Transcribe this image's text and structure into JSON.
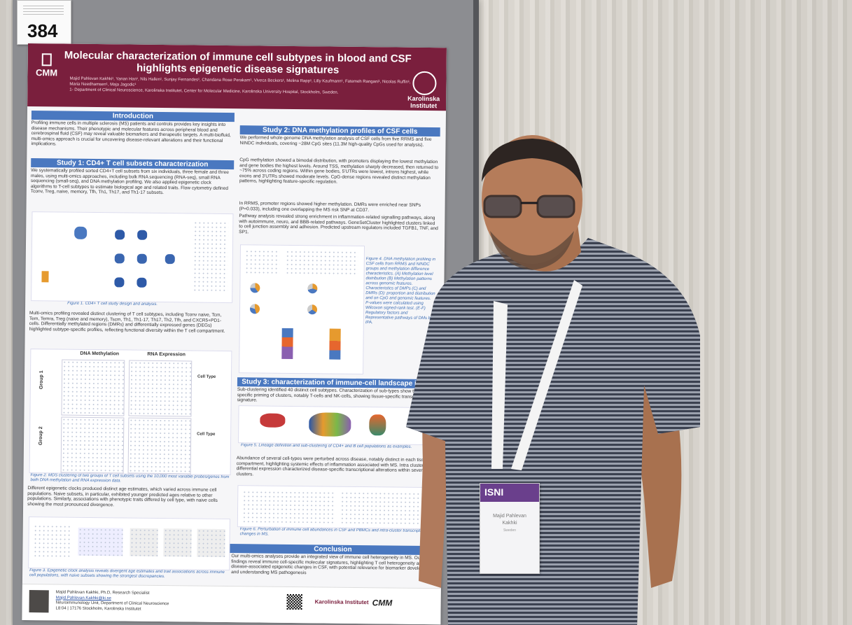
{
  "board": {
    "number": "384"
  },
  "poster": {
    "title": "Molecular characterization of immune cell subtypes in blood and CSF highlights epigenetic disease signatures",
    "authors": "Majid Pahlevan Kakhki¹, Yanan Han¹, Nils Hallen¹, Sunjay Fernandes¹, Chandana Rose Perakam¹, Viveca Beckers¹, Melina Rapp¹, Lilly Kaufmann¹, Fatemeh Rangani¹, Nicolas Ruffin¹, Maria Needhamsen¹, Maja Jagodic¹",
    "affiliation": "1- Department of Clinical Neuroscience, Karolinska Institutet, Center for Molecular Medicine, Karolinska University Hospital, Stockholm, Sweden.",
    "logo_left": "CMM",
    "logo_right": "Karolinska Institutet",
    "sections": {
      "intro": {
        "heading": "Introduction",
        "body": "Profiling immune cells in multiple sclerosis (MS) patients and controls provides key insights into disease mechanisms. Their phenotypic and molecular features across peripheral blood and cerebrospinal fluid (CSF) may reveal valuable biomarkers and therapeutic targets. A multi-biofluid, multi-omics approach is crucial for uncovering disease-relevant alterations and their functional implications."
      },
      "study1": {
        "heading": "Study 1: CD4+ T cell subsets characterization",
        "body": "We systematically profiled sorted CD4+T cell subsets from six individuals, three female and three males, using multi-omics approaches, including bulk RNA sequencing (RNA-seq), small RNA sequencing (small-seq), and DNA methylation profiling. We also applied epigenetic clock algorithms to T-cell subtypes to estimate biological age and related traits. Flow cytometry defined Tconv, Treg, naive, memory, Tfh, Th1, Th17, and Th1-17 subsets.",
        "fig1_caption": "Figure 1. CD4+ T cell study design and analysis.",
        "body2": "Multi-omics profiling revealed distinct clustering of T cell subtypes, including Tconv naive, Tcm, Tem, Temra, Treg (naive and memory), Tscm, Th1, Th1-17, Th17, Th2, Tfh, and CXCR5+PD1- cells. Differentially methylated regions (DMRs) and differentially expressed genes (DEGs) highlighted subtype-specific profiles, reflecting functional diversity within the T cell compartment.",
        "fig2_col1": "DNA Methylation",
        "fig2_col2": "RNA Expression",
        "fig2_row1": "Group 1",
        "fig2_row2": "Group 2",
        "fig2_legend1": "Cell Type",
        "fig2_legend2": "Cell Type",
        "fig2_caption": "Figure 2. MDS clustering of two groups of T cell subsets using the 10,000 most variable probes/genes from both DNA methylation and RNA expression data.",
        "body3": "Different epigenetic clocks produced distinct age estimates, which varied across immune cell populations. Naive subsets, in particular, exhibited younger predicted ages relative to other populations. Similarly, associations with phenotypic traits differed by cell type, with naive cells showing the most pronounced divergence.",
        "fig3_caption": "Figure 3. Epigenetic clock analysis reveals divergent age estimates and trait associations across immune cell populations, with naive subsets showing the strongest discrepancies."
      },
      "study2": {
        "heading": "Study 2: DNA methylation profiles of CSF cells",
        "body": "We performed whole-genome DNA methylation analysis of CSF cells from five RRMS and five NINDC individuals, covering ~28M CpG sites (11.3M high-quality CpGs used for analysis).",
        "body2": "CpG methylation showed a bimodal distribution, with promoters displaying the lowest methylation and gene bodies the highest levels. Around TSS, methylation sharply decreased, then returned to ~75% across coding regions. Within gene bodies, 5'UTRs were lowest, introns highest, while exons and 3'UTRs showed moderate levels. CpG-dense regions revealed distinct methylation patterns, highlighting feature-specific regulation.",
        "body3": "In RRMS, promoter regions showed higher methylation. DMRs were enriched near SNPs (P=0.033), including one overlapping the MS risk SNP at CD37.",
        "body4": "Pathway analysis revealed strong enrichment in inflammation-related signalling pathways, along with autoimmune, neuro, and BBB-related pathways. GeneSetCluster highlighted clusters linked to cell junction assembly and adhesion. Predicted upstream regulators included TGFB1, TNF, and SP1.",
        "fig4_caption": "Figure 4. DNA methylation profiling in CSF cells from RRMS and NINDC groups and methylation difference characteristics. (A) Methylation level distribution (B) Methylation patterns across genomic features. Characteristics of DMPs (C) and DMRs (D): proportion and distribution and on CpG and genomic features. P-values were calculated using Wilcoxon signed-rank test. (E-F) Regulatory factors and Representative pathways of DMs by IPA."
      },
      "study3": {
        "heading": "Study 3: characterization of immune-cell landscape in MS",
        "body": "Sub-clustering identified 40 distinct cell subtypes. Characterization of sub-types show tissue specific priming of clusters, notably T-cells and NK-cells, showing tissue-specific transcriptional signature.",
        "fig5_caption": "Figure 5. Lineage definition and sub-clustering of CD4+ and B cell populations as examples.",
        "body2": "Abundance of several cell-types were perturbed across disease, notably distinct in each tissue compartment, highlighting systemic effects of inflammation associated with MS. Intra cluster differential expression characterized disease-specific transcriptional alterations within several clusters.",
        "fig6_caption": "Figure 6. Perturbation of immune cell abundances in CSF and PBMCs and intra-cluster transcriptional changes in MS."
      },
      "conclusion": {
        "heading": "Conclusion",
        "body": "Our multi-omics analyses provide an integrated view of immune cell heterogeneity in MS. Our findings reveal immune cell-specific molecular signatures, highlighting T cell heterogeneity and disease-associated epigenetic changes in CSF, with potential relevance for biomarker development and understanding MS pathogenesis"
      }
    },
    "footer": {
      "name": "Majid Pahlevan Kakhki, Ph.D, Research Specialist",
      "email": "Majid.Pahlevan.Kakhki@ki.se",
      "unit": "Neuroimmunology Unit, Department of Clinical Neuroscience",
      "address": "L8:04 | 17176 Stockholm, Karolinska Institutet",
      "logo_ki": "Karolinska Institutet",
      "logo_cmm": "CMM"
    }
  },
  "badge": {
    "event": "ISNI",
    "name": "Majid Pahlevan Kakhki",
    "country": "Sweden"
  }
}
